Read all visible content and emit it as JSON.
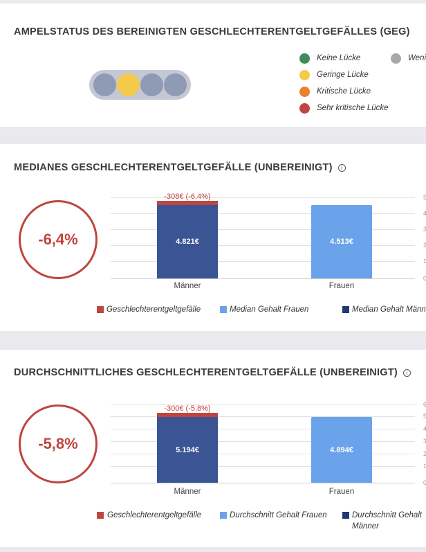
{
  "traffic_card": {
    "title": "AMPELSTATUS DES BEREINIGTEN GESCHLECHTERENTGELTGEFÄLLES (GEG)",
    "active_lamp": 2,
    "lamp_count": 4,
    "legend": [
      {
        "label": "Keine Lücke",
        "color": "#3c8d5a"
      },
      {
        "label": "Geringe Lücke",
        "color": "#f4ca4a"
      },
      {
        "label": "Kritische Lücke",
        "color": "#e8822a"
      },
      {
        "label": "Sehr kritische Lücke",
        "color": "#c0443f"
      },
      {
        "label": "Weni",
        "color": "#a8a8a8"
      }
    ]
  },
  "median_card": {
    "title": "MEDIANES GESCHLECHTERENTGELTGEFÄLLE (UNBEREINIGT)",
    "gap_percent": "-6,4%",
    "legend": [
      {
        "label": "Geschlechterentgeltgefälle",
        "color": "#c0443f"
      },
      {
        "label": "Median Gehalt Frauen",
        "color": "#6aa3e9"
      },
      {
        "label": "Median Gehalt Männ",
        "color": "#1e3a6e"
      }
    ],
    "chart_data": {
      "type": "bar",
      "title": "MEDIANES GESCHLECHTERENTGELTGEFÄLLE (UNBEREINIGT)",
      "categories": [
        "Männer",
        "Frauen"
      ],
      "values": [
        4821,
        4513
      ],
      "value_labels": [
        "4.821€",
        "4.513€"
      ],
      "gap_value": -308,
      "gap_label": "-308€ (-6,4%)",
      "axis_ticks": [
        "5",
        "4",
        "3",
        "2",
        "1",
        "0"
      ]
    }
  },
  "mean_card": {
    "title": "DURCHSCHNITTLICHES GESCHLECHTERENTGELTGEFÄLLE (UNBEREINIGT)",
    "gap_percent": "-5,8%",
    "legend": [
      {
        "label": "Geschlechterentgeltgefälle",
        "color": "#c0443f"
      },
      {
        "label": "Durchschnitt Gehalt Frauen",
        "color": "#6aa3e9"
      },
      {
        "label": "Durchschnitt Gehalt",
        "label2": "Männer",
        "color": "#1e3a6e"
      }
    ],
    "chart_data": {
      "type": "bar",
      "title": "DURCHSCHNITTLICHES GESCHLECHTERENTGELTGEFÄLLE (UNBEREINIGT)",
      "categories": [
        "Männer",
        "Frauen"
      ],
      "values": [
        5194,
        4894
      ],
      "value_labels": [
        "5.194€",
        "4.894€"
      ],
      "gap_value": -300,
      "gap_label": "-300€ (-5,8%)",
      "axis_ticks": [
        "6",
        "5",
        "4",
        "3",
        "2",
        "1",
        "0"
      ]
    }
  }
}
